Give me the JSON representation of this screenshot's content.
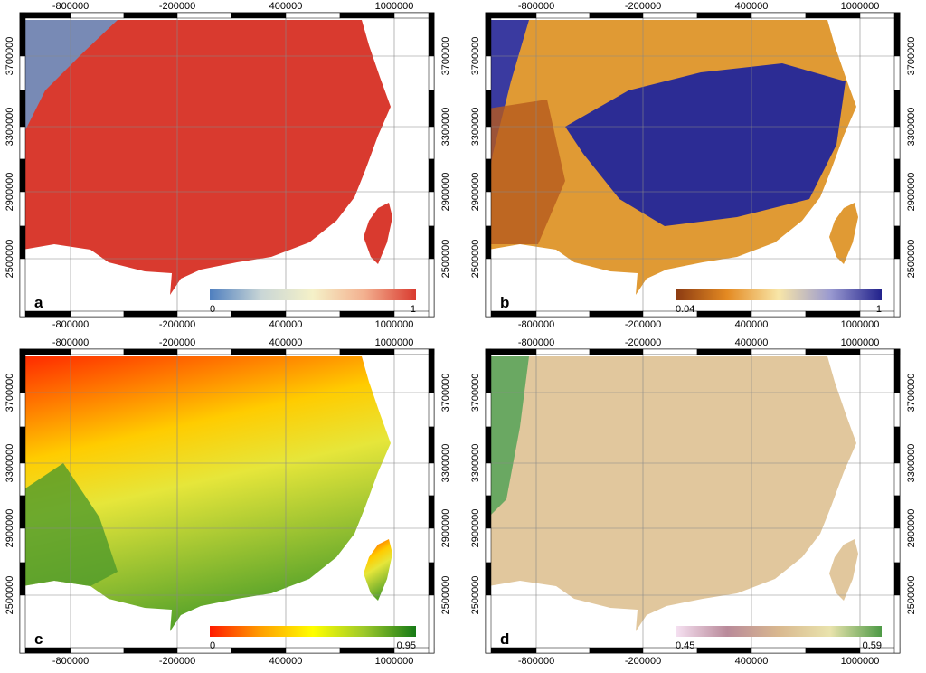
{
  "x_ticks": [
    "-800000",
    "-200000",
    "400000",
    "1000000"
  ],
  "y_ticks": [
    "3700000",
    "3300000",
    "2900000",
    "2500000"
  ],
  "panels": [
    {
      "label": "a",
      "colorbar": {
        "min": "0",
        "max": "1",
        "colors": [
          "#4f7fbf",
          "#c9d6d6",
          "#f5f1c8",
          "#f3b08f",
          "#d93a2f"
        ]
      }
    },
    {
      "label": "b",
      "colorbar": {
        "min": "0.04",
        "max": "1",
        "colors": [
          "#8b3a12",
          "#e48a22",
          "#f8e6a8",
          "#9a9ad0",
          "#22228c"
        ]
      }
    },
    {
      "label": "c",
      "colorbar": {
        "min": "0",
        "max": "0.95",
        "colors": [
          "#ff1a00",
          "#ffa000",
          "#ffff00",
          "#9cc82a",
          "#167a16"
        ]
      }
    },
    {
      "label": "d",
      "colorbar": {
        "min": "0.45",
        "max": "0.59",
        "colors": [
          "#f6e1f2",
          "#b98a9a",
          "#d9b88f",
          "#e9e3ad",
          "#4e9a46"
        ]
      }
    }
  ]
}
